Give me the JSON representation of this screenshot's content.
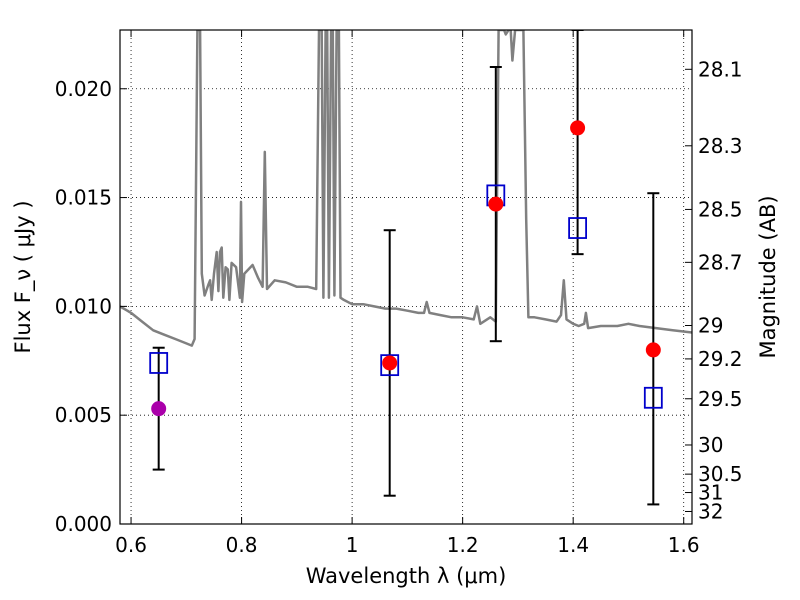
{
  "chart_data": {
    "type": "scatter",
    "title": "",
    "xlabel": "Wavelength  λ (μm)",
    "ylabel": "Flux  F_ν  ( μJy )",
    "ylabel_right": "Magnitude (AB)",
    "xlim": [
      0.58,
      1.615
    ],
    "ylim": [
      0.0,
      0.0227
    ],
    "grid": true,
    "x_ticks": [
      {
        "value": 0.6,
        "label": "0.6"
      },
      {
        "value": 0.8,
        "label": "0.8"
      },
      {
        "value": 1.0,
        "label": "1"
      },
      {
        "value": 1.2,
        "label": "1.2"
      },
      {
        "value": 1.4,
        "label": "1.4"
      },
      {
        "value": 1.6,
        "label": "1.6"
      }
    ],
    "y_ticks": [
      {
        "value": 0.0,
        "label": "0.000"
      },
      {
        "value": 0.005,
        "label": "0.005"
      },
      {
        "value": 0.01,
        "label": "0.010"
      },
      {
        "value": 0.015,
        "label": "0.015"
      },
      {
        "value": 0.02,
        "label": "0.020"
      }
    ],
    "right_ticks": [
      {
        "mag": 28.1,
        "label": "28.1"
      },
      {
        "mag": 28.3,
        "label": "28.3"
      },
      {
        "mag": 28.5,
        "label": "28.5"
      },
      {
        "mag": 28.7,
        "label": "28.7"
      },
      {
        "mag": 29.0,
        "label": "29"
      },
      {
        "mag": 29.2,
        "label": "29.2"
      },
      {
        "mag": 29.5,
        "label": "29.5"
      },
      {
        "mag": 30.0,
        "label": "30"
      },
      {
        "mag": 30.5,
        "label": "30.5"
      },
      {
        "mag": 31.0,
        "label": "31"
      },
      {
        "mag": 32.0,
        "label": "32"
      }
    ],
    "series": [
      {
        "kind": "model-spectrum-line",
        "color": "#808080",
        "points": [
          [
            0.58,
            0.01
          ],
          [
            0.6,
            0.0097
          ],
          [
            0.62,
            0.0093
          ],
          [
            0.64,
            0.0089
          ],
          [
            0.66,
            0.0087
          ],
          [
            0.68,
            0.0085
          ],
          [
            0.7,
            0.0083
          ],
          [
            0.71,
            0.0082
          ],
          [
            0.715,
            0.0085
          ],
          [
            0.72,
            0.0227
          ],
          [
            0.725,
            0.0227
          ],
          [
            0.728,
            0.0115
          ],
          [
            0.733,
            0.0105
          ],
          [
            0.74,
            0.011
          ],
          [
            0.743,
            0.0112
          ],
          [
            0.746,
            0.0103
          ],
          [
            0.75,
            0.0115
          ],
          [
            0.755,
            0.0125
          ],
          [
            0.758,
            0.0107
          ],
          [
            0.761,
            0.0125
          ],
          [
            0.764,
            0.0127
          ],
          [
            0.767,
            0.0104
          ],
          [
            0.771,
            0.0118
          ],
          [
            0.775,
            0.0117
          ],
          [
            0.778,
            0.0103
          ],
          [
            0.782,
            0.012
          ],
          [
            0.79,
            0.0118
          ],
          [
            0.797,
            0.0104
          ],
          [
            0.799,
            0.0148
          ],
          [
            0.801,
            0.0102
          ],
          [
            0.805,
            0.0115
          ],
          [
            0.82,
            0.0119
          ],
          [
            0.83,
            0.0113
          ],
          [
            0.838,
            0.0109
          ],
          [
            0.842,
            0.0171
          ],
          [
            0.846,
            0.0108
          ],
          [
            0.86,
            0.0112
          ],
          [
            0.88,
            0.0111
          ],
          [
            0.9,
            0.0109
          ],
          [
            0.92,
            0.0109
          ],
          [
            0.935,
            0.0108
          ],
          [
            0.94,
            0.0227
          ],
          [
            0.945,
            0.0227
          ],
          [
            0.948,
            0.0104
          ],
          [
            0.952,
            0.0227
          ],
          [
            0.955,
            0.0227
          ],
          [
            0.958,
            0.0104
          ],
          [
            0.962,
            0.0227
          ],
          [
            0.965,
            0.0227
          ],
          [
            0.968,
            0.0105
          ],
          [
            0.972,
            0.0227
          ],
          [
            0.976,
            0.0227
          ],
          [
            0.979,
            0.0104
          ],
          [
            0.985,
            0.0103
          ],
          [
            1.0,
            0.0101
          ],
          [
            1.02,
            0.0101
          ],
          [
            1.04,
            0.01
          ],
          [
            1.06,
            0.0099
          ],
          [
            1.08,
            0.0099
          ],
          [
            1.1,
            0.0098
          ],
          [
            1.12,
            0.0097
          ],
          [
            1.13,
            0.0097
          ],
          [
            1.135,
            0.0102
          ],
          [
            1.14,
            0.0097
          ],
          [
            1.16,
            0.0096
          ],
          [
            1.18,
            0.0095
          ],
          [
            1.2,
            0.0095
          ],
          [
            1.22,
            0.0094
          ],
          [
            1.226,
            0.01
          ],
          [
            1.232,
            0.0092
          ],
          [
            1.25,
            0.0095
          ],
          [
            1.26,
            0.0093
          ],
          [
            1.265,
            0.0227
          ],
          [
            1.27,
            0.0227
          ],
          [
            1.275,
            0.0227
          ],
          [
            1.278,
            0.0225
          ],
          [
            1.283,
            0.0227
          ],
          [
            1.287,
            0.0227
          ],
          [
            1.29,
            0.0213
          ],
          [
            1.295,
            0.0227
          ],
          [
            1.3,
            0.0227
          ],
          [
            1.305,
            0.0227
          ],
          [
            1.31,
            0.0227
          ],
          [
            1.315,
            0.014
          ],
          [
            1.319,
            0.0095
          ],
          [
            1.33,
            0.0095
          ],
          [
            1.35,
            0.0094
          ],
          [
            1.37,
            0.0093
          ],
          [
            1.378,
            0.0096
          ],
          [
            1.383,
            0.0112
          ],
          [
            1.388,
            0.0094
          ],
          [
            1.4,
            0.0092
          ],
          [
            1.41,
            0.0091
          ],
          [
            1.42,
            0.0092
          ],
          [
            1.423,
            0.0097
          ],
          [
            1.427,
            0.009
          ],
          [
            1.45,
            0.0091
          ],
          [
            1.48,
            0.0091
          ],
          [
            1.5,
            0.0092
          ],
          [
            1.52,
            0.0091
          ],
          [
            1.55,
            0.009
          ],
          [
            1.58,
            0.0089
          ],
          [
            1.615,
            0.0088
          ]
        ]
      },
      {
        "kind": "measurements",
        "color": "#ff0000",
        "points": [
          {
            "x": 1.068,
            "y": 0.0074,
            "yerr_low": 0.0013,
            "yerr_high": 0.0135
          },
          {
            "x": 1.26,
            "y": 0.0147,
            "yerr_low": 0.0084,
            "yerr_high": 0.021
          },
          {
            "x": 1.408,
            "y": 0.0182,
            "yerr_low": 0.0124,
            "yerr_high": 0.0227
          },
          {
            "x": 1.545,
            "y": 0.008,
            "yerr_low": 0.0009,
            "yerr_high": 0.0152
          }
        ]
      },
      {
        "kind": "measurements",
        "color": "#aa00aa",
        "points": [
          {
            "x": 0.65,
            "y": 0.0053,
            "yerr_low": 0.0025,
            "yerr_high": 0.0081
          }
        ]
      },
      {
        "kind": "model-photometry",
        "color": "#0000cc",
        "points": [
          {
            "x": 0.65,
            "y": 0.0074
          },
          {
            "x": 1.068,
            "y": 0.0073
          },
          {
            "x": 1.26,
            "y": 0.0151
          },
          {
            "x": 1.408,
            "y": 0.0136
          },
          {
            "x": 1.545,
            "y": 0.0058
          }
        ]
      }
    ]
  }
}
